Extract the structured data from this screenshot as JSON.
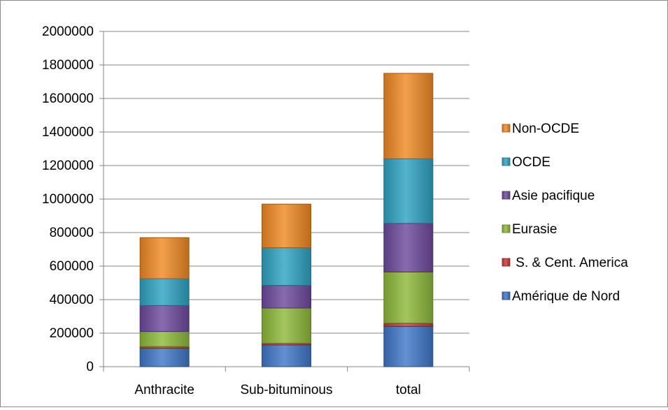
{
  "chart_data": {
    "type": "bar",
    "stacked": true,
    "title": "",
    "xlabel": "",
    "ylabel": "",
    "categories": [
      "Anthracite",
      "Sub-bituminous",
      "total"
    ],
    "ylim": [
      0,
      2000000
    ],
    "yticks": [
      0,
      200000,
      400000,
      600000,
      800000,
      1000000,
      1200000,
      1400000,
      1600000,
      1800000,
      2000000
    ],
    "grid": true,
    "legend_position": "right",
    "series": [
      {
        "name": "Amérique de Nord",
        "color": "#3f78c8",
        "values": [
          110000,
          130000,
          240000
        ]
      },
      {
        "name": " S. & Cent. America",
        "color": "#c83a36",
        "values": [
          10000,
          10000,
          20000
        ]
      },
      {
        "name": "Eurasie",
        "color": "#8fba3c",
        "values": [
          90000,
          210000,
          305000
        ]
      },
      {
        "name": "Asie pacifique",
        "color": "#6e4a9e",
        "values": [
          155000,
          135000,
          290000
        ]
      },
      {
        "name": "OCDE",
        "color": "#2fa3c3",
        "values": [
          160000,
          225000,
          385000
        ]
      },
      {
        "name": "Non-OCDE",
        "color": "#f08a24",
        "values": [
          245000,
          260000,
          510000
        ]
      }
    ]
  }
}
